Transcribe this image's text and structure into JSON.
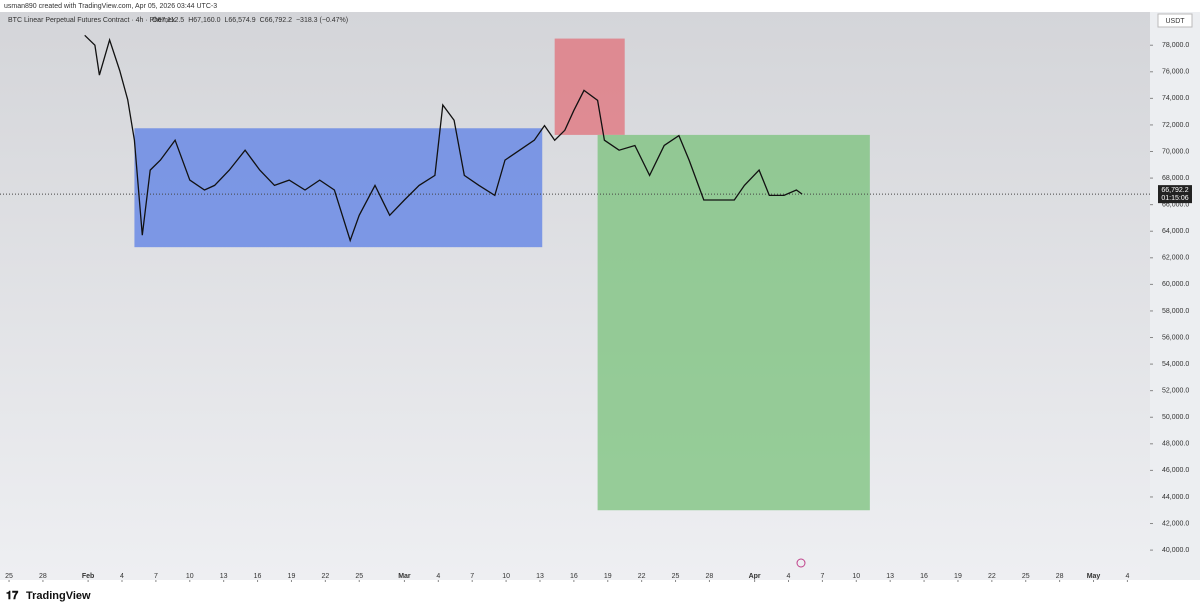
{
  "header": {
    "credit": "usman890 created with TradingView.com, Apr 05, 2026 03:44 UTC-3",
    "brand": "TradingView"
  },
  "chart_data": {
    "type": "line",
    "title": "BTC Linear Perpetual Futures Contract · 4h · Phemex",
    "ohlc": [
      "O67,112.5",
      "H67,160.0",
      "L66,574.9",
      "C66,792.2",
      "−318.3 (−0.47%)"
    ],
    "currency": "USDT",
    "last_price": {
      "value": 66792.2,
      "label": "66,792.2"
    },
    "countdown": "01:15:06",
    "xlim": [
      -0.8,
      101
    ],
    "ylim": [
      37750,
      80500
    ],
    "xticks": [
      {
        "value": 0,
        "label": "25"
      },
      {
        "value": 3,
        "label": "28"
      },
      {
        "value": 7,
        "label": "Feb"
      },
      {
        "value": 10,
        "label": "4"
      },
      {
        "value": 13,
        "label": "7"
      },
      {
        "value": 16,
        "label": "10"
      },
      {
        "value": 19,
        "label": "13"
      },
      {
        "value": 22,
        "label": "16"
      },
      {
        "value": 25,
        "label": "19"
      },
      {
        "value": 28,
        "label": "22"
      },
      {
        "value": 31,
        "label": "25"
      },
      {
        "value": 35,
        "label": "Mar"
      },
      {
        "value": 38,
        "label": "4"
      },
      {
        "value": 41,
        "label": "7"
      },
      {
        "value": 44,
        "label": "10"
      },
      {
        "value": 47,
        "label": "13"
      },
      {
        "value": 50,
        "label": "16"
      },
      {
        "value": 53,
        "label": "19"
      },
      {
        "value": 56,
        "label": "22"
      },
      {
        "value": 59,
        "label": "25"
      },
      {
        "value": 62,
        "label": "28"
      },
      {
        "value": 66,
        "label": "Apr"
      },
      {
        "value": 69,
        "label": "4"
      },
      {
        "value": 72,
        "label": "7"
      },
      {
        "value": 75,
        "label": "10"
      },
      {
        "value": 78,
        "label": "13"
      },
      {
        "value": 81,
        "label": "16"
      },
      {
        "value": 84,
        "label": "19"
      },
      {
        "value": 87,
        "label": "22"
      },
      {
        "value": 90,
        "label": "25"
      },
      {
        "value": 93,
        "label": "28"
      },
      {
        "value": 96,
        "label": "May"
      },
      {
        "value": 99,
        "label": "4"
      }
    ],
    "yticks": [
      {
        "value": 40000,
        "label": "40,000.0"
      },
      {
        "value": 42000,
        "label": "42,000.0"
      },
      {
        "value": 44000,
        "label": "44,000.0"
      },
      {
        "value": 46000,
        "label": "46,000.0"
      },
      {
        "value": 48000,
        "label": "48,000.0"
      },
      {
        "value": 50000,
        "label": "50,000.0"
      },
      {
        "value": 52000,
        "label": "52,000.0"
      },
      {
        "value": 54000,
        "label": "54,000.0"
      },
      {
        "value": 56000,
        "label": "56,000.0"
      },
      {
        "value": 58000,
        "label": "58,000.0"
      },
      {
        "value": 60000,
        "label": "60,000.0"
      },
      {
        "value": 62000,
        "label": "62,000.0"
      },
      {
        "value": 64000,
        "label": "64,000.0"
      },
      {
        "value": 66000,
        "label": "66,000.0"
      },
      {
        "value": 68000,
        "label": "68,000.0"
      },
      {
        "value": 70000,
        "label": "70,000.0"
      },
      {
        "value": 72000,
        "label": "72,000.0"
      },
      {
        "value": 74000,
        "label": "74,000.0"
      },
      {
        "value": 76000,
        "label": "76,000.0"
      },
      {
        "value": 78000,
        "label": "78,000.0"
      }
    ],
    "zones": [
      {
        "x0": 11.1,
        "x1": 47.2,
        "y0": 62800,
        "y1": 71750,
        "color": "#5b7fe6"
      },
      {
        "x0": 48.3,
        "x1": 54.5,
        "y0": 71250,
        "y1": 78500,
        "color": "#e0707a"
      },
      {
        "x0": 52.1,
        "x1": 76.2,
        "y0": 43000,
        "y1": 71250,
        "color": "#79c27b"
      }
    ],
    "color": "#111111",
    "x": [
      6.7,
      7.6,
      8.0,
      8.9,
      9.8,
      10.5,
      11.1,
      11.8,
      12.5,
      13.4,
      14.7,
      16.0,
      17.3,
      18.2,
      19.5,
      20.9,
      22.2,
      23.5,
      24.8,
      26.2,
      27.5,
      28.8,
      30.2,
      31.0,
      32.4,
      33.7,
      35.0,
      36.3,
      37.7,
      38.4,
      39.4,
      40.3,
      41.6,
      43.0,
      43.9,
      45.2,
      46.5,
      47.4,
      48.3,
      49.2,
      50.0,
      50.9,
      52.1,
      52.7,
      54.0,
      55.4,
      56.7,
      58.0,
      59.3,
      60.2,
      61.5,
      62.9,
      64.2,
      65.1,
      66.4,
      67.3,
      68.6,
      69.7,
      70.2
    ],
    "values": [
      78750,
      78000,
      75750,
      78400,
      76100,
      73900,
      70850,
      63700,
      68600,
      69350,
      70850,
      67850,
      67100,
      67450,
      68600,
      70100,
      68600,
      67450,
      67850,
      67100,
      67850,
      67100,
      63300,
      65200,
      67450,
      65200,
      66350,
      67450,
      68200,
      73500,
      72350,
      68200,
      67450,
      66700,
      69350,
      70100,
      70850,
      71950,
      70850,
      71600,
      73100,
      74600,
      73850,
      70850,
      70100,
      70450,
      68200,
      70450,
      71200,
      69350,
      66350,
      66350,
      66350,
      67450,
      68600,
      66700,
      66700,
      67100,
      66792.2
    ]
  }
}
